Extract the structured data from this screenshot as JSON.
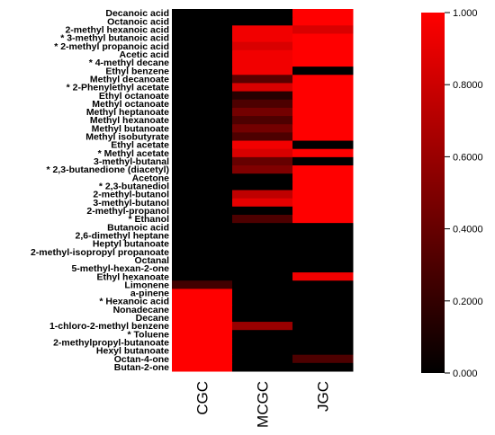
{
  "chart_data": {
    "type": "heatmap",
    "columns": [
      "CGC",
      "MCGC",
      "JGC"
    ],
    "rows": [
      "Decanoic acid",
      "Octanoic acid",
      "2-methyl hexanoic acid",
      "* 3-methyl butanoic acid",
      "* 2-methyl propanoic acid",
      "Acetic acid",
      "* 4-methyl decane",
      "Ethyl benzene",
      "Methyl decanoate",
      "* 2-Phenylethyl acetate",
      "Ethyl octanoate",
      "Methyl octanoate",
      "Methyl heptanoate",
      "Methyl hexanoate",
      "Methyl butanoate",
      "Methyl isobutyrate",
      "Ethyl acetate",
      "* Methyl acetate",
      "3-methyl-butanal",
      "* 2,3-butanedione (diacetyl)",
      "Acetone",
      "* 2,3-butanediol",
      "2-methyl-butanol",
      "3-methyl-butanol",
      "2-methyl-propanol",
      "* Ethanol",
      "Butanoic acid",
      "2,6-dimethyl heptane",
      "Heptyl butanoate",
      "2-methyl-isopropyl propanoate",
      "Octanal",
      "5-methyl-hexan-2-one",
      "Ethyl hexanoate",
      "Limonene",
      "a-pinene",
      "* Hexanoic acid",
      "Nonadecane",
      "Decane",
      "1-chloro-2-methyl benzene",
      "* Toluene",
      "2-methylpropyl-butanoate",
      "Hexyl butanoate",
      "Octan-4-one",
      "Butan-2-one"
    ],
    "values": [
      [
        0.0,
        0.0,
        1.0
      ],
      [
        0.0,
        0.0,
        1.0
      ],
      [
        0.0,
        0.95,
        0.85
      ],
      [
        0.0,
        0.95,
        1.0
      ],
      [
        0.0,
        0.85,
        1.0
      ],
      [
        0.0,
        0.95,
        1.0
      ],
      [
        0.0,
        0.95,
        1.0
      ],
      [
        0.0,
        0.95,
        0.0
      ],
      [
        0.0,
        0.35,
        1.0
      ],
      [
        0.0,
        0.85,
        1.0
      ],
      [
        0.0,
        0.15,
        1.0
      ],
      [
        0.0,
        0.3,
        1.0
      ],
      [
        0.0,
        0.45,
        1.0
      ],
      [
        0.0,
        0.3,
        1.0
      ],
      [
        0.0,
        0.45,
        1.0
      ],
      [
        0.0,
        0.3,
        1.0
      ],
      [
        0.0,
        0.95,
        0.0
      ],
      [
        0.0,
        0.85,
        1.0
      ],
      [
        0.0,
        0.4,
        0.0
      ],
      [
        0.0,
        0.5,
        1.0
      ],
      [
        0.0,
        0.0,
        1.0
      ],
      [
        0.0,
        0.0,
        1.0
      ],
      [
        0.0,
        0.75,
        1.0
      ],
      [
        0.0,
        0.9,
        1.0
      ],
      [
        0.0,
        0.0,
        1.0
      ],
      [
        0.0,
        0.3,
        1.0
      ],
      [
        0.0,
        0.0,
        0.0
      ],
      [
        0.0,
        0.0,
        0.0
      ],
      [
        0.0,
        0.0,
        0.0
      ],
      [
        0.0,
        0.0,
        0.0
      ],
      [
        0.0,
        0.0,
        0.0
      ],
      [
        0.0,
        0.0,
        0.0
      ],
      [
        0.0,
        0.0,
        0.95
      ],
      [
        0.25,
        0.0,
        0.0
      ],
      [
        1.0,
        0.0,
        0.0
      ],
      [
        1.0,
        0.0,
        0.0
      ],
      [
        1.0,
        0.0,
        0.0
      ],
      [
        1.0,
        0.0,
        0.0
      ],
      [
        1.0,
        0.6,
        0.0
      ],
      [
        1.0,
        0.0,
        0.0
      ],
      [
        1.0,
        0.0,
        0.0
      ],
      [
        1.0,
        0.0,
        0.0
      ],
      [
        1.0,
        0.0,
        0.3
      ],
      [
        1.0,
        0.0,
        0.0
      ]
    ],
    "colorbar": {
      "range": [
        0.0,
        1.0
      ],
      "tick_labels": [
        "1.000",
        "0.8000",
        "0.6000",
        "0.4000",
        "0.2000",
        "0.000"
      ],
      "low_color": "#000000",
      "high_color": "#ff0000"
    }
  }
}
